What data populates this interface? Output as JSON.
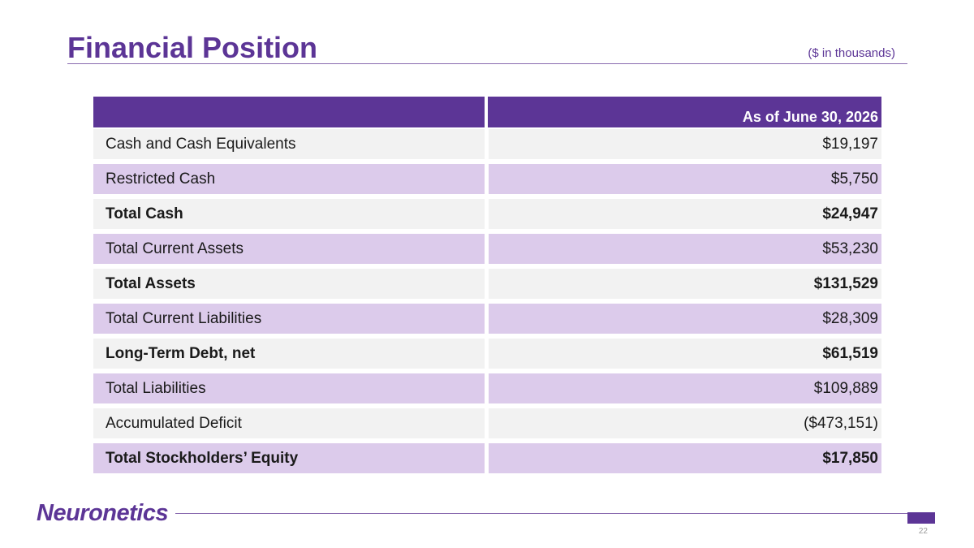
{
  "header": {
    "title": "Financial Position",
    "units": "($ in thousands)"
  },
  "table": {
    "column_header": "As of June 30, 2026",
    "rows": [
      {
        "label": "Cash and Cash Equivalents",
        "value": "$19,197"
      },
      {
        "label": "Restricted Cash",
        "value": "$5,750"
      },
      {
        "label": "Total Cash",
        "value": "$24,947"
      },
      {
        "label": "Total Current Assets",
        "value": "$53,230"
      },
      {
        "label": "Total Assets",
        "value": "$131,529"
      },
      {
        "label": "Total Current Liabilities",
        "value": "$28,309"
      },
      {
        "label": "Long-Term Debt, net",
        "value": "$61,519"
      },
      {
        "label": "Total Liabilities",
        "value": "$109,889"
      },
      {
        "label": "Accumulated Deficit",
        "value": "($473,151)"
      },
      {
        "label": "Total Stockholders’ Equity",
        "value": "$17,850"
      }
    ]
  },
  "footer": {
    "logo_text": "Neuronetics",
    "page_number": "22"
  },
  "colors": {
    "brand_purple": "#5c3596",
    "row_purple": "#dccbeb",
    "row_gray": "#f2f2f2"
  }
}
